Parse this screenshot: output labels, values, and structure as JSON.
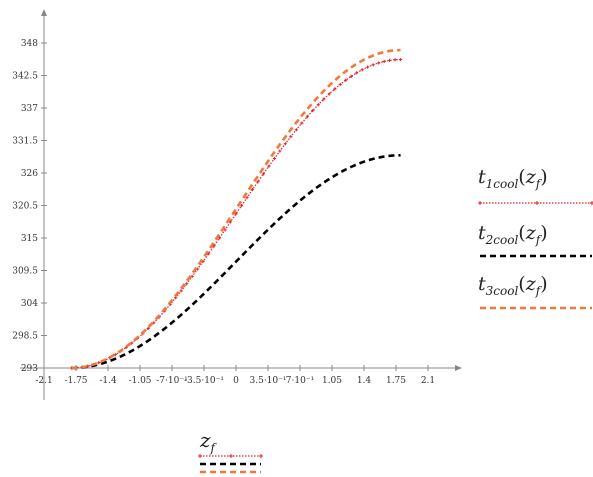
{
  "chart_data": {
    "type": "line",
    "xlim": [
      -2.1,
      2.1
    ],
    "ylim": [
      293,
      348
    ],
    "x_ticks": [
      "-2.1",
      "-1.75",
      "-1.4",
      "-1.05",
      "-7·10⁻¹",
      "-3.5·10⁻¹",
      "0",
      "3.5·10⁻¹",
      "7·10⁻¹",
      "1.05",
      "1.4",
      "1.75",
      "2.1"
    ],
    "x_tick_values": [
      -2.1,
      -1.75,
      -1.4,
      -1.05,
      -0.7,
      -0.35,
      0,
      0.35,
      0.7,
      1.05,
      1.4,
      1.75,
      2.1
    ],
    "y_ticks": [
      "293",
      "298.5",
      "304",
      "309.5",
      "315",
      "320.5",
      "326",
      "331.5",
      "337",
      "342.5",
      "348"
    ],
    "y_tick_values": [
      293,
      298.5,
      304,
      309.5,
      315,
      320.5,
      326,
      331.5,
      337,
      342.5,
      348
    ],
    "xlabel": "z_f",
    "x_domain": [
      -1.8,
      1.8
    ],
    "series": [
      {
        "name": "t_1cool(z_f)",
        "min": 293,
        "max": 345.2,
        "color": "#e8202a",
        "style": "dotted-cross"
      },
      {
        "name": "t_2cool(z_f)",
        "min": 293,
        "max": 329.0,
        "color": "#000000",
        "style": "dashed"
      },
      {
        "name": "t_3cool(z_f)",
        "min": 293,
        "max": 346.8,
        "color": "#f0783c",
        "style": "dashed"
      }
    ],
    "grid": false,
    "legend_position": "right"
  },
  "legend": {
    "items": [
      {
        "fn": "t",
        "sub": "1cool",
        "arg": "z",
        "argsub": "f"
      },
      {
        "fn": "t",
        "sub": "2cool",
        "arg": "z",
        "argsub": "f"
      },
      {
        "fn": "t",
        "sub": "3cool",
        "arg": "z",
        "argsub": "f"
      }
    ]
  },
  "xlegend": {
    "var": "z",
    "sub": "f"
  }
}
